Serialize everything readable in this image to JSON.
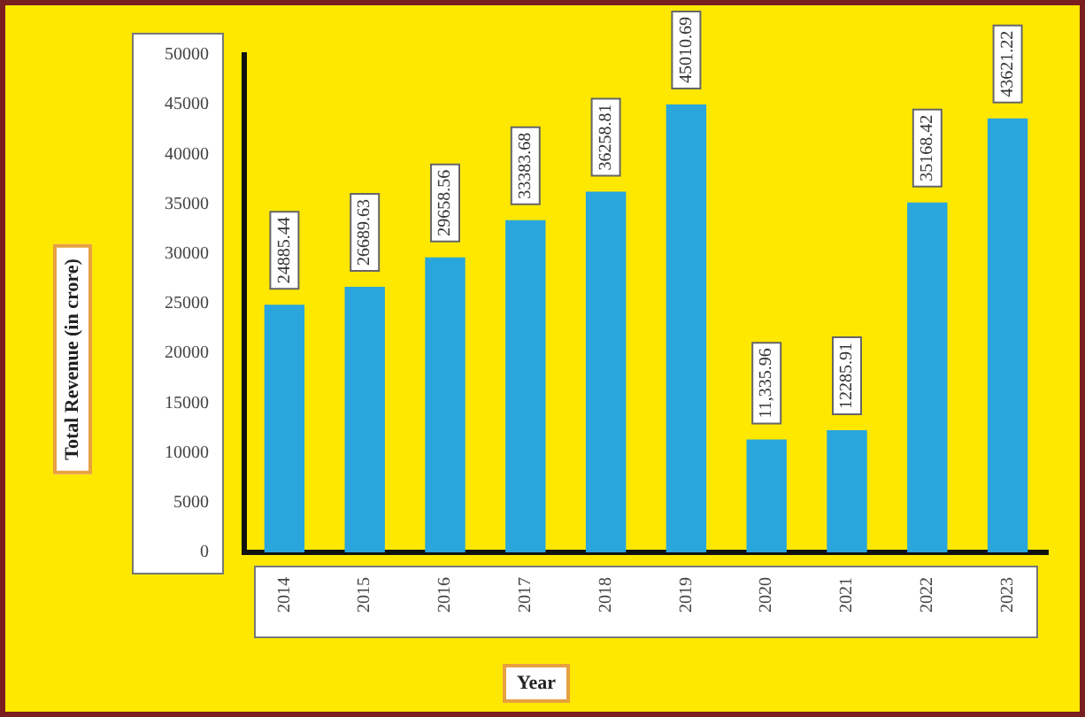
{
  "chart_data": {
    "type": "bar",
    "xlabel": "Year",
    "ylabel": "Total Revenue  (in crore)",
    "categories": [
      "2014",
      "2015",
      "2016",
      "2017",
      "2018",
      "2019",
      "2020",
      "2021",
      "2022",
      "2023"
    ],
    "values": [
      24885.44,
      26689.63,
      29658.56,
      33383.68,
      36258.81,
      45010.69,
      11335.96,
      12285.91,
      35168.42,
      43621.22
    ],
    "value_labels": [
      "24885.44",
      "26689.63",
      "29658.56",
      "33383.68",
      "36258.81",
      "45010.69",
      "11,335.96",
      "12285.91",
      "35168.42",
      "43621.22"
    ],
    "color": "#29a6dc",
    "ylim": [
      0,
      50000
    ],
    "yticks": [
      0,
      5000,
      10000,
      15000,
      20000,
      25000,
      30000,
      35000,
      40000,
      45000,
      50000
    ],
    "grid": false,
    "legend": false
  }
}
